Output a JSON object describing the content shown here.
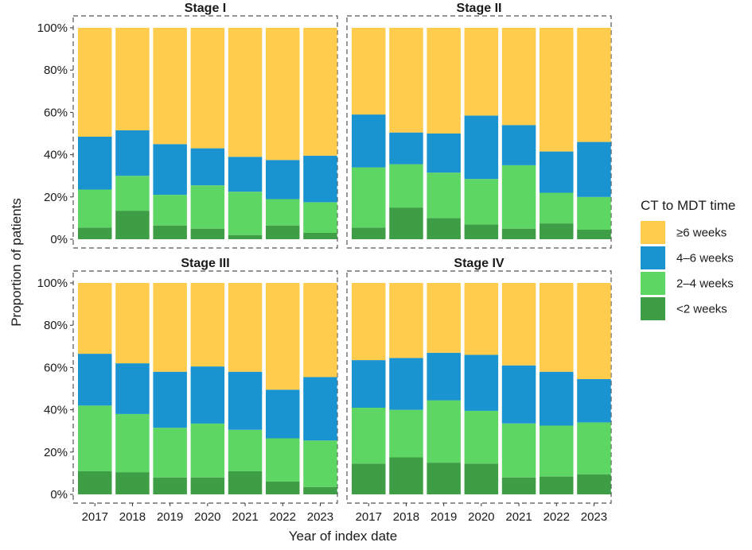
{
  "chart_data": {
    "type": "bar",
    "stacked": true,
    "normalized": true,
    "xlabel": "Year of index date",
    "ylabel": "Proportion of patients",
    "yticks": [
      "0%",
      "20%",
      "40%",
      "60%",
      "80%",
      "100%"
    ],
    "ylim": [
      0,
      100
    ],
    "categories": [
      "2017",
      "2018",
      "2019",
      "2020",
      "2021",
      "2022",
      "2023"
    ],
    "legend": {
      "title": "CT to MDT time",
      "position": "right",
      "entries": [
        {
          "label": "≥6 weeks",
          "color": "#FFCC4D"
        },
        {
          "label": "4–6 weeks",
          "color": "#1A93D1"
        },
        {
          "label": "2–4 weeks",
          "color": "#5ED663"
        },
        {
          "label": "<2 weeks",
          "color": "#3E9E45"
        }
      ]
    },
    "series_order_bottom_to_top": [
      "<2 weeks",
      "2–4 weeks",
      "4–6 weeks",
      "≥6 weeks"
    ],
    "panels": [
      {
        "title": "Stage I",
        "series": [
          {
            "name": "<2 weeks",
            "values": [
              5.5,
              13.5,
              6.5,
              5,
              2,
              6.5,
              3
            ]
          },
          {
            "name": "2–4 weeks",
            "values": [
              18,
              16.5,
              14.5,
              20.5,
              20.5,
              12.5,
              14.5
            ]
          },
          {
            "name": "4–6 weeks",
            "values": [
              25,
              21.5,
              24,
              17.5,
              16.5,
              18.5,
              22
            ]
          },
          {
            "name": "≥6 weeks",
            "values": [
              51.5,
              48.5,
              55,
              57,
              61,
              62.5,
              60.5
            ]
          }
        ]
      },
      {
        "title": "Stage II",
        "series": [
          {
            "name": "<2 weeks",
            "values": [
              5.5,
              15,
              10,
              7,
              5,
              7.5,
              4.5
            ]
          },
          {
            "name": "2–4 weeks",
            "values": [
              28.5,
              20.5,
              21.5,
              21.5,
              30,
              14.5,
              15.5
            ]
          },
          {
            "name": "4–6 weeks",
            "values": [
              25,
              15,
              18.5,
              30,
              19,
              19.5,
              26
            ]
          },
          {
            "name": "≥6 weeks",
            "values": [
              41,
              49.5,
              50,
              41.5,
              46,
              58.5,
              54
            ]
          }
        ]
      },
      {
        "title": "Stage III",
        "series": [
          {
            "name": "<2 weeks",
            "values": [
              11,
              10.5,
              8,
              8,
              11,
              6,
              3.5
            ]
          },
          {
            "name": "2–4 weeks",
            "values": [
              31,
              27.5,
              23.5,
              25.5,
              19.5,
              20.5,
              22
            ]
          },
          {
            "name": "4–6 weeks",
            "values": [
              24.5,
              24,
              26.5,
              27,
              27.5,
              23,
              30
            ]
          },
          {
            "name": "≥6 weeks",
            "values": [
              33.5,
              38,
              42,
              39.5,
              42,
              50.5,
              44.5
            ]
          }
        ]
      },
      {
        "title": "Stage IV",
        "series": [
          {
            "name": "<2 weeks",
            "values": [
              14.5,
              17.5,
              15,
              14.5,
              8,
              8.5,
              9.5
            ]
          },
          {
            "name": "2–4 weeks",
            "values": [
              26.5,
              22.5,
              29.5,
              25,
              25.5,
              24,
              24.5
            ]
          },
          {
            "name": "4–6 weeks",
            "values": [
              22.5,
              24.5,
              22.5,
              26.5,
              27.5,
              25.5,
              20.5
            ]
          },
          {
            "name": "≥6 weeks",
            "values": [
              36.5,
              35.5,
              33,
              34,
              39,
              42,
              45.5
            ]
          }
        ]
      }
    ]
  }
}
